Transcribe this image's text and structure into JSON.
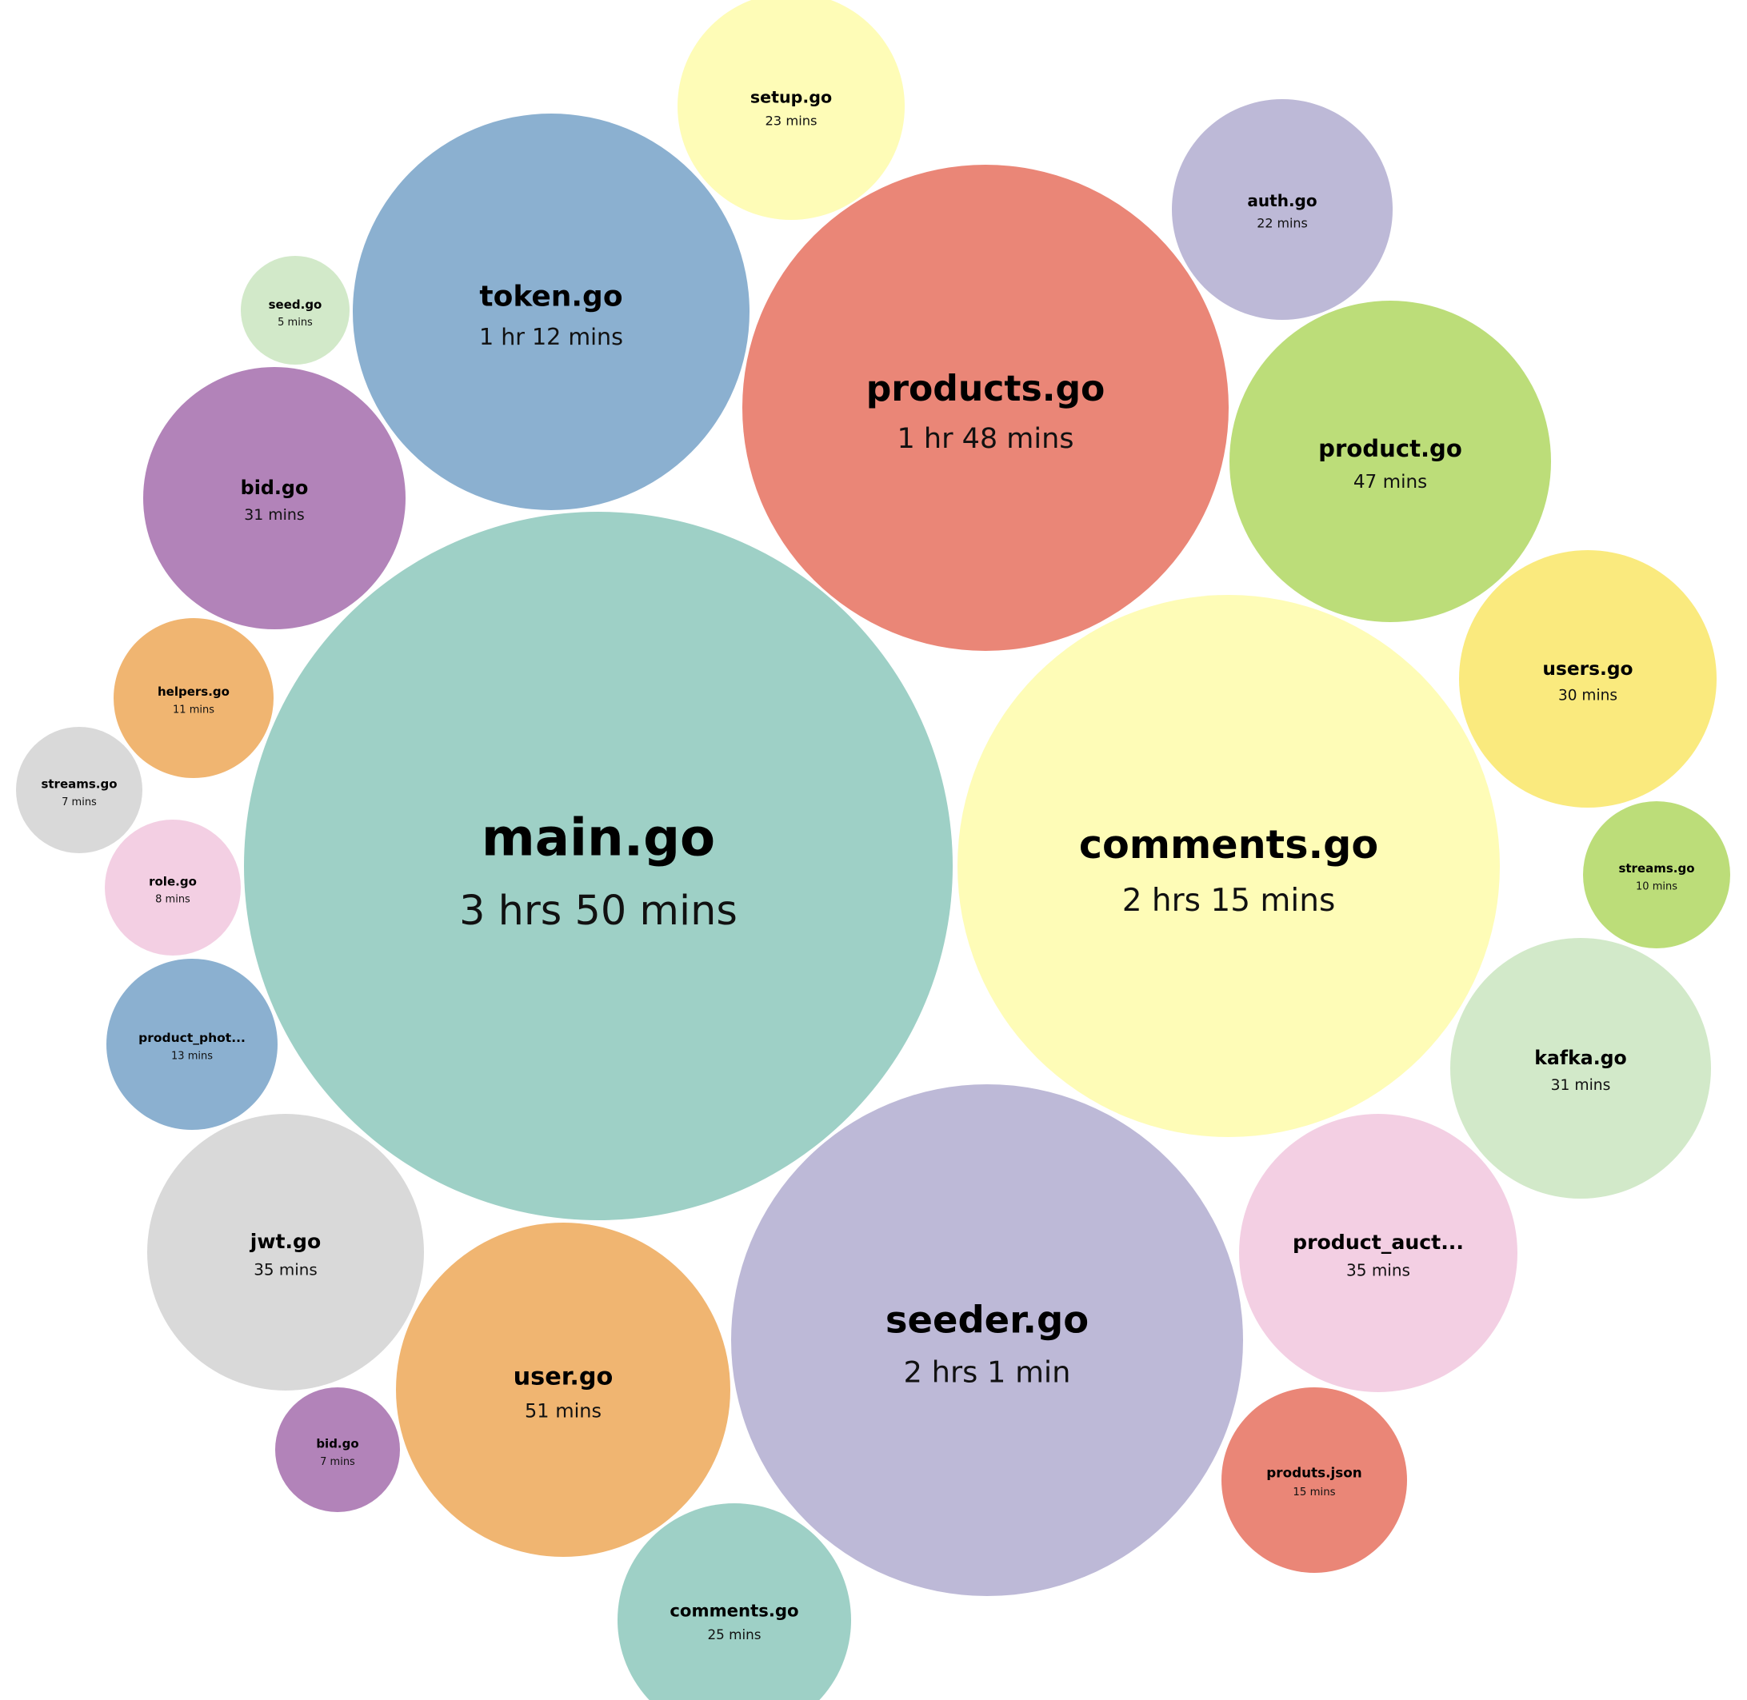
{
  "chart_data": {
    "type": "bubble",
    "value_unit": "mins",
    "series": [
      {
        "name": "main.go",
        "label": "3 hrs 50 mins",
        "minutes": 230,
        "color": "#9ed0c6"
      },
      {
        "name": "comments.go",
        "label": "2 hrs 15 mins",
        "minutes": 135,
        "color": "#fefcb7"
      },
      {
        "name": "seeder.go",
        "label": "2 hrs 1 min",
        "minutes": 121,
        "color": "#bdb9d7"
      },
      {
        "name": "products.go",
        "label": "1 hr 48 mins",
        "minutes": 108,
        "color": "#ea8677"
      },
      {
        "name": "token.go",
        "label": "1 hr 12 mins",
        "minutes": 72,
        "color": "#8bb0d0"
      },
      {
        "name": "user.go",
        "label": "51 mins",
        "minutes": 51,
        "color": "#f0b571"
      },
      {
        "name": "product.go",
        "label": "47 mins",
        "minutes": 47,
        "color": "#bcdd79"
      },
      {
        "name": "jwt.go",
        "label": "35 mins",
        "minutes": 35,
        "color": "#d9d9d9"
      },
      {
        "name": "product_auct...",
        "label": "35 mins",
        "minutes": 35,
        "color": "#f3cfe3"
      },
      {
        "name": "kafka.go",
        "label": "31 mins",
        "minutes": 31,
        "color": "#d2e9c9"
      },
      {
        "name": "bid.go",
        "label": "31 mins",
        "minutes": 31,
        "color": "#b283b9"
      },
      {
        "name": "users.go",
        "label": "30 mins",
        "minutes": 30,
        "color": "#faea7e"
      },
      {
        "name": "comments.go",
        "label": "25 mins",
        "minutes": 25,
        "color": "#9ed0c6"
      },
      {
        "name": "setup.go",
        "label": "23 mins",
        "minutes": 23,
        "color": "#fefcb7"
      },
      {
        "name": "auth.go",
        "label": "22 mins",
        "minutes": 22,
        "color": "#bdb9d7"
      },
      {
        "name": "produts.json",
        "label": "15 mins",
        "minutes": 15,
        "color": "#ea8677"
      },
      {
        "name": "product_phot...",
        "label": "13 mins",
        "minutes": 13,
        "color": "#8bb0d0"
      },
      {
        "name": "helpers.go",
        "label": "11 mins",
        "minutes": 11,
        "color": "#f0b571"
      },
      {
        "name": "streams.go",
        "label": "10 mins",
        "minutes": 10,
        "color": "#bcdd79"
      },
      {
        "name": "role.go",
        "label": "8 mins",
        "minutes": 8,
        "color": "#f3cfe3"
      },
      {
        "name": "streams.go",
        "label": "7 mins",
        "minutes": 7,
        "color": "#d9d9d9"
      },
      {
        "name": "bid.go",
        "label": "7 mins",
        "minutes": 7,
        "color": "#b283b9"
      },
      {
        "name": "seed.go",
        "label": "5 mins",
        "minutes": 5,
        "color": "#d2e9c9"
      }
    ]
  }
}
